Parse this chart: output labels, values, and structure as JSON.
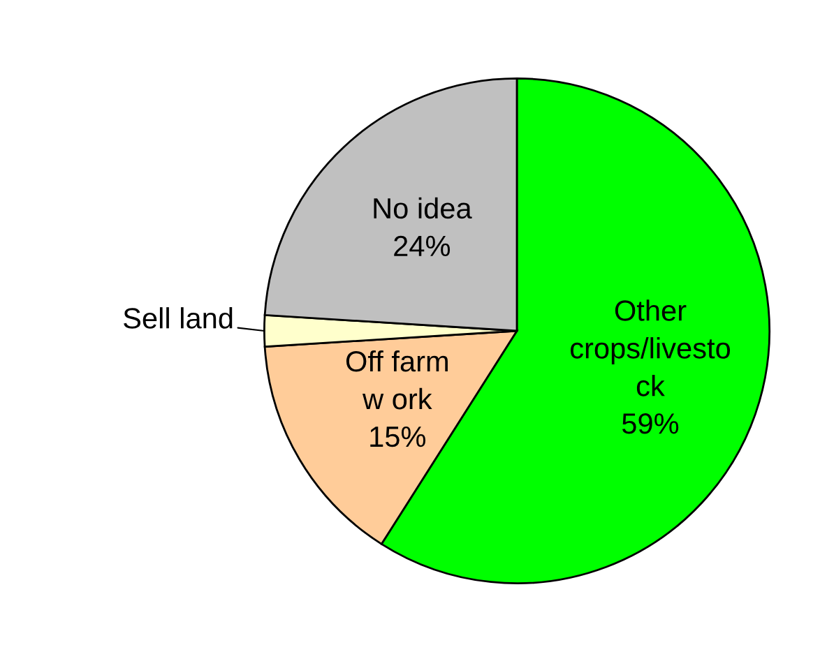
{
  "chart_data": {
    "type": "pie",
    "categories": [
      "Other\ncrops/livesto\nck",
      "Off farm\nw ork",
      "Sell land",
      "No idea"
    ],
    "values": [
      59,
      15,
      2,
      24
    ],
    "value_labels": [
      "59%",
      "15%",
      null,
      "24%"
    ],
    "colors": [
      "#00ff00",
      "#ffcc99",
      "#ffffcc",
      "#c0c0c0"
    ],
    "legend": false
  }
}
